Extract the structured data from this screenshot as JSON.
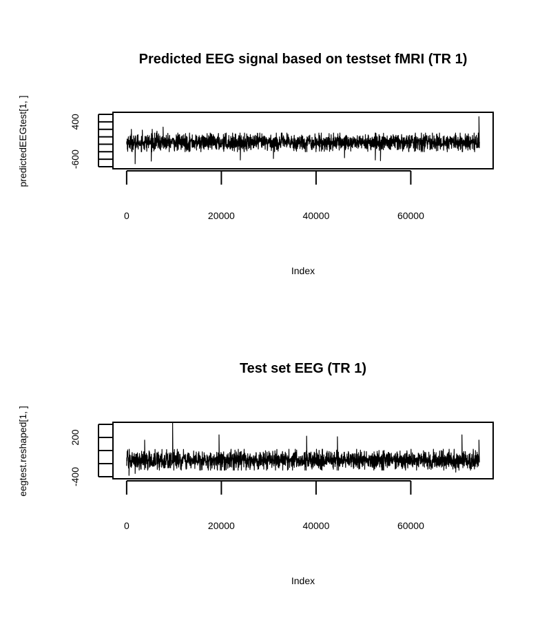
{
  "chart_data": [
    {
      "type": "line",
      "title": "Predicted EEG signal based on testset fMRI (TR 1)",
      "xlabel": "Index",
      "ylabel": "predictedEEGtest[1, ]",
      "xlim": [
        0,
        74500
      ],
      "ylim": [
        -800,
        600
      ],
      "x_ticks": [
        0,
        20000,
        40000,
        60000
      ],
      "x_tick_labels": [
        "0",
        "20000",
        "40000",
        "60000"
      ],
      "y_ticks": [
        -800,
        -600,
        -400,
        -200,
        0,
        200,
        400,
        600
      ],
      "y_tick_labels": [
        "-600",
        "400"
      ],
      "y_labeled_ticks": [
        -600,
        400
      ],
      "grid": false,
      "series": [
        {
          "n_points": 74500,
          "x_start": 1,
          "x_end": 74500,
          "baseline": -150,
          "typical_range": [
            -400,
            100
          ],
          "min": -720,
          "max": 540,
          "notable_spikes": [
            {
              "x": 1000,
              "y": 200
            },
            {
              "x": 1800,
              "y": -720
            },
            {
              "x": 3300,
              "y": 180
            },
            {
              "x": 5200,
              "y": -650
            },
            {
              "x": 5400,
              "y": 200
            },
            {
              "x": 6400,
              "y": 150
            },
            {
              "x": 7700,
              "y": 260
            },
            {
              "x": 24000,
              "y": -620
            },
            {
              "x": 31000,
              "y": -580
            },
            {
              "x": 46000,
              "y": -560
            },
            {
              "x": 52500,
              "y": -620
            },
            {
              "x": 53600,
              "y": -640
            },
            {
              "x": 74400,
              "y": 540
            }
          ]
        }
      ]
    },
    {
      "type": "line",
      "title": "Test set EEG (TR 1)",
      "xlabel": "Index",
      "ylabel": "eegtest.reshaped[1, ]",
      "xlim": [
        0,
        74500
      ],
      "ylim": [
        -400,
        400
      ],
      "x_ticks": [
        0,
        20000,
        40000,
        60000
      ],
      "x_tick_labels": [
        "0",
        "20000",
        "40000",
        "60000"
      ],
      "y_ticks": [
        -400,
        -200,
        0,
        200,
        400
      ],
      "y_tick_labels": [
        "-400",
        "200"
      ],
      "y_labeled_ticks": [
        -400,
        200
      ],
      "grid": false,
      "series": [
        {
          "n_points": 74500,
          "x_start": 1,
          "x_end": 74500,
          "baseline": -150,
          "typical_range": [
            -300,
            20
          ],
          "min": -380,
          "max": 430,
          "notable_spikes": [
            {
              "x": 500,
              "y": -380
            },
            {
              "x": 1800,
              "y": -350
            },
            {
              "x": 3800,
              "y": 160
            },
            {
              "x": 9700,
              "y": 430
            },
            {
              "x": 19500,
              "y": 240
            },
            {
              "x": 38000,
              "y": 220
            },
            {
              "x": 44500,
              "y": 210
            },
            {
              "x": 69500,
              "y": -330
            },
            {
              "x": 70800,
              "y": 240
            },
            {
              "x": 74400,
              "y": 160
            }
          ]
        }
      ]
    }
  ]
}
